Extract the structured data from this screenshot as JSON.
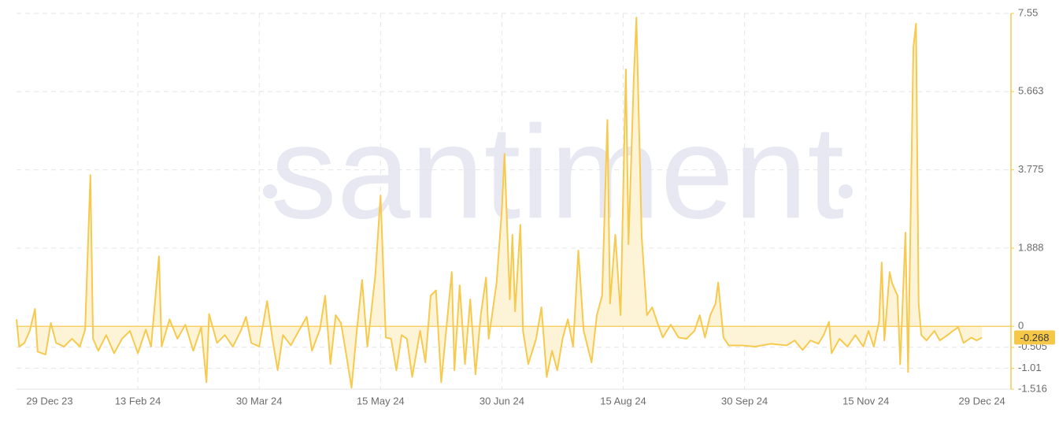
{
  "chart_data": {
    "type": "line",
    "watermark": "santiment",
    "color": "#f6c94f",
    "fill": "#fdf4d8",
    "x": [
      "2023-12-29",
      "2023-12-30",
      "2024-01-01",
      "2024-01-03",
      "2024-01-05",
      "2024-01-06",
      "2024-01-09",
      "2024-01-11",
      "2024-01-13",
      "2024-01-16",
      "2024-01-19",
      "2024-01-22",
      "2024-01-24",
      "2024-01-26",
      "2024-01-27",
      "2024-01-29",
      "2024-02-01",
      "2024-02-04",
      "2024-02-07",
      "2024-02-10",
      "2024-02-13",
      "2024-02-16",
      "2024-02-18",
      "2024-02-21",
      "2024-02-22",
      "2024-02-25",
      "2024-02-28",
      "2024-03-02",
      "2024-03-05",
      "2024-03-08",
      "2024-03-10",
      "2024-03-11",
      "2024-03-14",
      "2024-03-17",
      "2024-03-20",
      "2024-03-23",
      "2024-03-25",
      "2024-03-27",
      "2024-03-30",
      "2024-04-02",
      "2024-04-04",
      "2024-04-06",
      "2024-04-08",
      "2024-04-11",
      "2024-04-14",
      "2024-04-17",
      "2024-04-19",
      "2024-04-22",
      "2024-04-24",
      "2024-04-26",
      "2024-04-28",
      "2024-04-30",
      "2024-05-02",
      "2024-05-04",
      "2024-05-06",
      "2024-05-08",
      "2024-05-10",
      "2024-05-13",
      "2024-05-15",
      "2024-05-17",
      "2024-05-19",
      "2024-05-21",
      "2024-05-23",
      "2024-05-25",
      "2024-05-27",
      "2024-05-30",
      "2024-06-01",
      "2024-06-03",
      "2024-06-05",
      "2024-06-07",
      "2024-06-09",
      "2024-06-11",
      "2024-06-12",
      "2024-06-14",
      "2024-06-16",
      "2024-06-18",
      "2024-06-20",
      "2024-06-22",
      "2024-06-24",
      "2024-06-25",
      "2024-06-28",
      "2024-06-30",
      "2024-07-01",
      "2024-07-03",
      "2024-07-04",
      "2024-07-05",
      "2024-07-07",
      "2024-07-08",
      "2024-07-10",
      "2024-07-13",
      "2024-07-15",
      "2024-07-17",
      "2024-07-19",
      "2024-07-21",
      "2024-07-23",
      "2024-07-25",
      "2024-07-27",
      "2024-07-29",
      "2024-07-31",
      "2024-08-03",
      "2024-08-05",
      "2024-08-07",
      "2024-08-09",
      "2024-08-10",
      "2024-08-12",
      "2024-08-14",
      "2024-08-16",
      "2024-08-17",
      "2024-08-19",
      "2024-08-20",
      "2024-08-22",
      "2024-08-24",
      "2024-08-26",
      "2024-08-28",
      "2024-08-30",
      "2024-09-02",
      "2024-09-05",
      "2024-09-08",
      "2024-09-11",
      "2024-09-13",
      "2024-09-15",
      "2024-09-17",
      "2024-09-19",
      "2024-09-20",
      "2024-09-22",
      "2024-09-24",
      "2024-09-29",
      "2024-10-04",
      "2024-10-10",
      "2024-10-16",
      "2024-10-19",
      "2024-10-22",
      "2024-10-25",
      "2024-10-28",
      "2024-10-30",
      "2024-11-01",
      "2024-11-02",
      "2024-11-05",
      "2024-11-08",
      "2024-11-11",
      "2024-11-14",
      "2024-11-16",
      "2024-11-18",
      "2024-11-20",
      "2024-11-21",
      "2024-11-22",
      "2024-11-24",
      "2024-11-25",
      "2024-11-27",
      "2024-11-28",
      "2024-11-30",
      "2024-12-01",
      "2024-12-03",
      "2024-12-04",
      "2024-12-05",
      "2024-12-06",
      "2024-12-08",
      "2024-12-11",
      "2024-12-13",
      "2024-12-16",
      "2024-12-18",
      "2024-12-20",
      "2024-12-22",
      "2024-12-25",
      "2024-12-27",
      "2024-12-29"
    ],
    "values": [
      0.17,
      -0.49,
      -0.4,
      -0.11,
      0.42,
      -0.61,
      -0.68,
      0.08,
      -0.4,
      -0.49,
      -0.3,
      -0.49,
      -0.08,
      3.65,
      -0.3,
      -0.59,
      -0.21,
      -0.65,
      -0.3,
      -0.11,
      -0.65,
      -0.08,
      -0.49,
      1.69,
      -0.49,
      0.17,
      -0.3,
      0.04,
      -0.59,
      -0.02,
      -1.35,
      0.3,
      -0.4,
      -0.21,
      -0.49,
      -0.11,
      0.23,
      -0.4,
      -0.49,
      0.61,
      -0.3,
      -1.06,
      -0.21,
      -0.46,
      -0.11,
      0.23,
      -0.59,
      -0.08,
      0.74,
      -0.91,
      0.27,
      0.08,
      -0.68,
      -1.48,
      -0.11,
      1.12,
      -0.49,
      1.22,
      3.16,
      -0.27,
      -0.3,
      -1.06,
      -0.21,
      -0.3,
      -1.22,
      -0.11,
      -0.87,
      0.74,
      0.87,
      -1.35,
      -0.02,
      1.31,
      -1.06,
      0.99,
      -0.91,
      0.65,
      -1.16,
      0.27,
      1.18,
      -0.3,
      1.06,
      2.83,
      4.16,
      0.65,
      2.21,
      0.36,
      2.45,
      -0.11,
      -0.91,
      -0.3,
      0.46,
      -1.22,
      -0.59,
      -1.06,
      -0.3,
      0.17,
      -0.49,
      1.83,
      -0.11,
      -0.87,
      0.27,
      0.74,
      4.98,
      0.55,
      2.21,
      0.27,
      6.2,
      1.98,
      5.97,
      7.45,
      2.17,
      0.27,
      0.46,
      0.08,
      -0.27,
      0.04,
      -0.27,
      -0.3,
      -0.11,
      0.27,
      -0.27,
      0.27,
      0.55,
      1.06,
      -0.27,
      -0.46,
      -0.46,
      -0.49,
      -0.42,
      -0.46,
      -0.34,
      -0.57,
      -0.34,
      -0.42,
      -0.21,
      0.11,
      -0.65,
      -0.3,
      -0.49,
      -0.21,
      -0.49,
      -0.11,
      -0.49,
      0.11,
      1.54,
      -0.34,
      1.31,
      1.03,
      0.74,
      -0.91,
      2.26,
      -1.1,
      6.73,
      7.3,
      0.55,
      -0.21,
      -0.34,
      -0.11,
      -0.34,
      -0.21,
      -0.11,
      -0.02,
      -0.4,
      -0.27,
      -0.34,
      -0.268
    ],
    "xlim": [
      "2023-12-29",
      "2025-01-09"
    ],
    "xticks": [
      {
        "value": "2023-12-29",
        "label": "29 Dec 23"
      },
      {
        "value": "2024-02-13",
        "label": "13 Feb 24"
      },
      {
        "value": "2024-03-30",
        "label": "30 Mar 24"
      },
      {
        "value": "2024-05-15",
        "label": "15 May 24"
      },
      {
        "value": "2024-06-30",
        "label": "30 Jun 24"
      },
      {
        "value": "2024-08-15",
        "label": "15 Aug 24"
      },
      {
        "value": "2024-09-30",
        "label": "30 Sep 24"
      },
      {
        "value": "2024-11-15",
        "label": "15 Nov 24"
      },
      {
        "value": "2024-12-29",
        "label": "29 Dec 24"
      }
    ],
    "ylim": [
      -1.516,
      7.55
    ],
    "yticks": [
      -1.516,
      -1.01,
      -0.505,
      0,
      1.888,
      3.775,
      5.663,
      7.55
    ],
    "grid": true
  }
}
